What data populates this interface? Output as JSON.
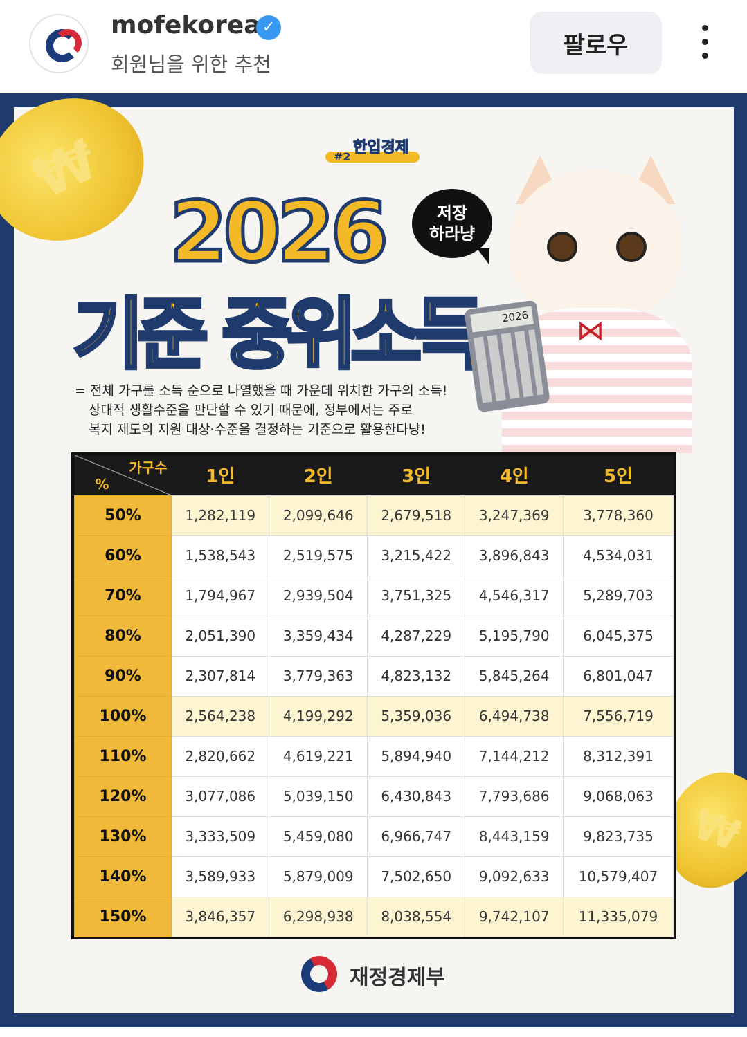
{
  "header": {
    "username": "mofekorea",
    "verified": true,
    "subtitle": "회원님을 위한 추천",
    "follow_label": "팔로우",
    "more_icon": "more-vertical-icon"
  },
  "post": {
    "badge": {
      "text": "한입경제",
      "number": "#2"
    },
    "title_year": "2026",
    "title_main": "기준 중위소득",
    "bubble": [
      "저장",
      "하라냥"
    ],
    "calculator_display": "2026",
    "description": [
      "= 전체 가구를 소득 순으로 나열했을 때 가운데 위치한 가구의 소득!",
      "상대적 생활수준을 판단할 수 있기 때문에, 정부에서는 주로",
      "복지 제도의 지원 대상·수준을 결정하는 기준으로 활용한다냥!"
    ],
    "coin_symbol": "₩",
    "colors": {
      "navy": "#1f3a6d",
      "yellow": "#f3b927",
      "header_bg": "#1a1a1a",
      "highlight_row": "#fdf5d2"
    },
    "table": {
      "corner_top": "가구수",
      "corner_bottom": "%",
      "columns": [
        "1인",
        "2인",
        "3인",
        "4인",
        "5인"
      ],
      "rows": [
        {
          "label": "50%",
          "highlight": true,
          "values": [
            "1,282,119",
            "2,099,646",
            "2,679,518",
            "3,247,369",
            "3,778,360"
          ]
        },
        {
          "label": "60%",
          "values": [
            "1,538,543",
            "2,519,575",
            "3,215,422",
            "3,896,843",
            "4,534,031"
          ]
        },
        {
          "label": "70%",
          "values": [
            "1,794,967",
            "2,939,504",
            "3,751,325",
            "4,546,317",
            "5,289,703"
          ]
        },
        {
          "label": "80%",
          "values": [
            "2,051,390",
            "3,359,434",
            "4,287,229",
            "5,195,790",
            "6,045,375"
          ]
        },
        {
          "label": "90%",
          "values": [
            "2,307,814",
            "3,779,363",
            "4,823,132",
            "5,845,264",
            "6,801,047"
          ]
        },
        {
          "label": "100%",
          "highlight": true,
          "values": [
            "2,564,238",
            "4,199,292",
            "5,359,036",
            "6,494,738",
            "7,556,719"
          ]
        },
        {
          "label": "110%",
          "values": [
            "2,820,662",
            "4,619,221",
            "5,894,940",
            "7,144,212",
            "8,312,391"
          ]
        },
        {
          "label": "120%",
          "values": [
            "3,077,086",
            "5,039,150",
            "6,430,843",
            "7,793,686",
            "9,068,063"
          ]
        },
        {
          "label": "130%",
          "values": [
            "3,333,509",
            "5,459,080",
            "6,966,747",
            "8,443,159",
            "9,823,735"
          ]
        },
        {
          "label": "140%",
          "values": [
            "3,589,933",
            "5,879,009",
            "7,502,650",
            "9,092,633",
            "10,579,407"
          ]
        },
        {
          "label": "150%",
          "highlight": true,
          "values": [
            "3,846,357",
            "6,298,938",
            "8,038,554",
            "9,742,107",
            "11,335,079"
          ]
        }
      ]
    },
    "ministry": "재정경제부"
  }
}
